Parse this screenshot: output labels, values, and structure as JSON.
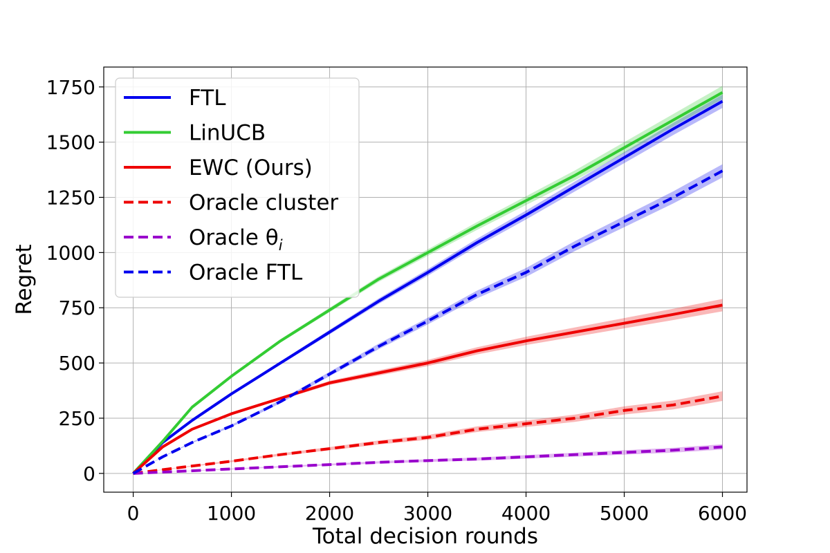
{
  "chart_data": {
    "type": "line",
    "title": "",
    "xlabel": "Total decision rounds",
    "ylabel": "Regret",
    "xlim": [
      -300,
      6250
    ],
    "ylim": [
      -85,
      1840
    ],
    "xticks": [
      0,
      1000,
      2000,
      3000,
      4000,
      5000,
      6000
    ],
    "yticks": [
      0,
      250,
      500,
      750,
      1000,
      1250,
      1500,
      1750
    ],
    "xtick_labels": [
      "0",
      "1000",
      "2000",
      "3000",
      "4000",
      "5000",
      "6000"
    ],
    "ytick_labels": [
      "0",
      "250",
      "500",
      "750",
      "1000",
      "1250",
      "1500",
      "1750"
    ],
    "grid": true,
    "legend_position": "top-left",
    "series": [
      {
        "name": "FTL",
        "color": "#0000ee",
        "dash": "solid",
        "band": 30,
        "x": [
          0,
          300,
          600,
          1000,
          1500,
          2000,
          2500,
          3000,
          3500,
          4000,
          4500,
          5000,
          5500,
          6000
        ],
        "y": [
          0,
          140,
          240,
          360,
          500,
          640,
          780,
          910,
          1045,
          1170,
          1300,
          1430,
          1560,
          1685
        ]
      },
      {
        "name": "LinUCB",
        "color": "#33cc33",
        "dash": "solid",
        "band": 30,
        "x": [
          0,
          300,
          600,
          1000,
          1500,
          2000,
          2500,
          3000,
          3500,
          4000,
          4500,
          5000,
          5500,
          6000
        ],
        "y": [
          0,
          145,
          300,
          440,
          600,
          740,
          880,
          1000,
          1120,
          1235,
          1350,
          1475,
          1600,
          1725
        ]
      },
      {
        "name": "EWC (Ours)",
        "color": "#ee0000",
        "dash": "solid",
        "band": 28,
        "x": [
          0,
          300,
          600,
          1000,
          1500,
          2000,
          2500,
          3000,
          3500,
          4000,
          4500,
          5000,
          5500,
          6000
        ],
        "y": [
          0,
          120,
          200,
          270,
          340,
          410,
          455,
          500,
          555,
          600,
          640,
          680,
          720,
          762
        ]
      },
      {
        "name": "Oracle cluster",
        "color": "#ee0000",
        "dash": "dashed",
        "band": 22,
        "x": [
          0,
          500,
          1000,
          1500,
          2000,
          2500,
          3000,
          3500,
          4000,
          4500,
          5000,
          5500,
          6000
        ],
        "y": [
          0,
          28,
          55,
          85,
          112,
          140,
          163,
          200,
          225,
          250,
          285,
          310,
          350
        ]
      },
      {
        "name": "Oracle θi",
        "color": "#9900cc",
        "dash": "dashed",
        "band": 12,
        "x": [
          0,
          500,
          1000,
          1500,
          2000,
          2500,
          3000,
          3500,
          4000,
          4500,
          5000,
          5500,
          6000
        ],
        "y": [
          0,
          10,
          20,
          30,
          40,
          50,
          58,
          65,
          75,
          85,
          95,
          105,
          120
        ]
      },
      {
        "name": "Oracle FTL",
        "color": "#0000ee",
        "dash": "dashed",
        "band": 30,
        "x": [
          0,
          300,
          600,
          1000,
          1500,
          2000,
          2500,
          3000,
          3500,
          4000,
          4500,
          5000,
          5500,
          6000
        ],
        "y": [
          0,
          75,
          140,
          215,
          325,
          450,
          575,
          690,
          810,
          910,
          1030,
          1140,
          1250,
          1370
        ]
      }
    ]
  },
  "legend": {
    "items": [
      {
        "label": "FTL",
        "sub": ""
      },
      {
        "label": "LinUCB",
        "sub": ""
      },
      {
        "label": "EWC (Ours)",
        "sub": ""
      },
      {
        "label": "Oracle cluster",
        "sub": ""
      },
      {
        "label": "Oracle θ",
        "sub": "i"
      },
      {
        "label": "Oracle FTL",
        "sub": ""
      }
    ]
  }
}
